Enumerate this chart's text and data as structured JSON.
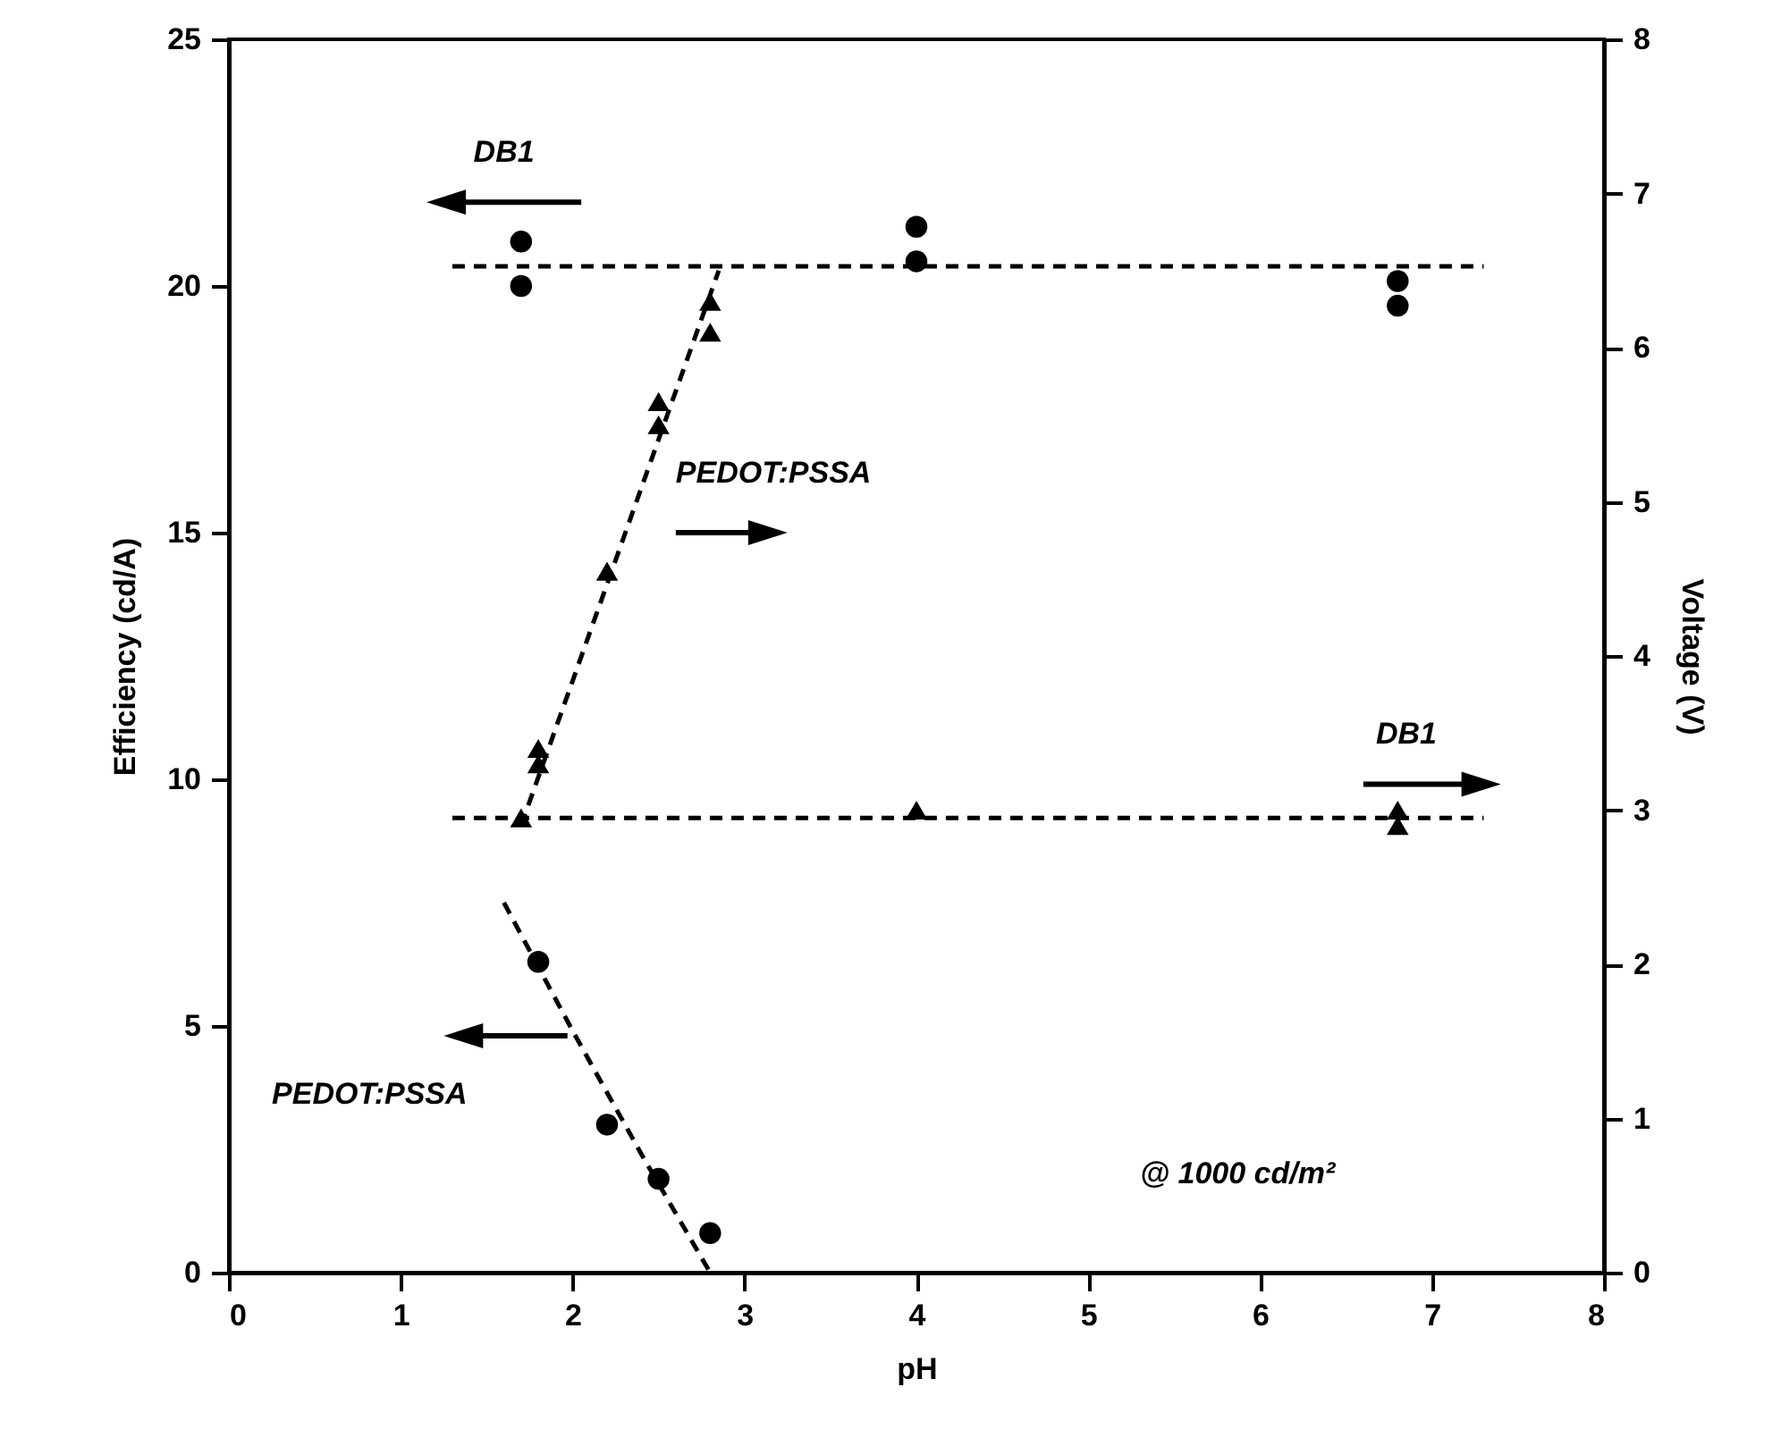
{
  "chart_data": {
    "type": "scatter",
    "xlabel": "pH",
    "ylabel": "Efficiency (cd/A)",
    "y2label": "Voltage (V)",
    "xlim": [
      0,
      8
    ],
    "xticks": [
      0,
      1,
      2,
      3,
      4,
      5,
      6,
      7,
      8
    ],
    "ylim": [
      0,
      25
    ],
    "yticks": [
      0,
      5,
      10,
      15,
      20,
      25
    ],
    "y2lim": [
      0,
      8
    ],
    "y2ticks": [
      0,
      1,
      2,
      3,
      4,
      5,
      6,
      7,
      8
    ],
    "grid": false,
    "annotations": [
      "DB1",
      "PEDOT:PSSA",
      "DB1",
      "PEDOT:PSSA",
      "@ 1000 cd/m²"
    ],
    "series": [
      {
        "marker": "circle",
        "color": "#000000",
        "x": [
          1.7,
          1.7,
          4,
          4,
          6.8,
          6.8
        ],
        "values": [
          20.9,
          20.0,
          21.2,
          20.5,
          20.1,
          19.6
        ]
      },
      {
        "type": "line",
        "marker": "none",
        "line_style": "dashed",
        "color": "#000000",
        "x": [
          1.3,
          7.3
        ],
        "values": [
          20.4,
          20.4
        ]
      },
      {
        "marker": "circle",
        "color": "#000000",
        "x": [
          1.8,
          2.2,
          2.5,
          2.8
        ],
        "values": [
          6.3,
          3.0,
          1.9,
          0.8
        ]
      },
      {
        "type": "line",
        "marker": "none",
        "line_style": "dashed",
        "color": "#000000",
        "x": [
          1.6,
          2.0,
          2.4,
          2.8
        ],
        "values": [
          7.5,
          4.9,
          2.4,
          0
        ]
      },
      {
        "marker": "triangle",
        "axis": "y2",
        "color": "#000000",
        "x": [
          1.8,
          1.8,
          2.2,
          2.5,
          2.5,
          2.8,
          2.8
        ],
        "values": [
          3.3,
          3.4,
          4.55,
          5.5,
          5.65,
          6.1,
          6.3
        ]
      },
      {
        "type": "line",
        "marker": "none",
        "line_style": "dashed",
        "axis": "y2",
        "color": "#000000",
        "x": [
          1.7,
          2.85
        ],
        "values": [
          2.9,
          6.5
        ]
      },
      {
        "marker": "triangle",
        "axis": "y2",
        "color": "#000000",
        "x": [
          1.7,
          4,
          6.8,
          6.8
        ],
        "values": [
          2.95,
          3.0,
          3.0,
          2.9
        ]
      },
      {
        "type": "line",
        "marker": "none",
        "line_style": "dashed",
        "axis": "y2",
        "color": "#000000",
        "x": [
          1.3,
          7.3
        ],
        "values": [
          2.95,
          2.95
        ]
      }
    ]
  }
}
